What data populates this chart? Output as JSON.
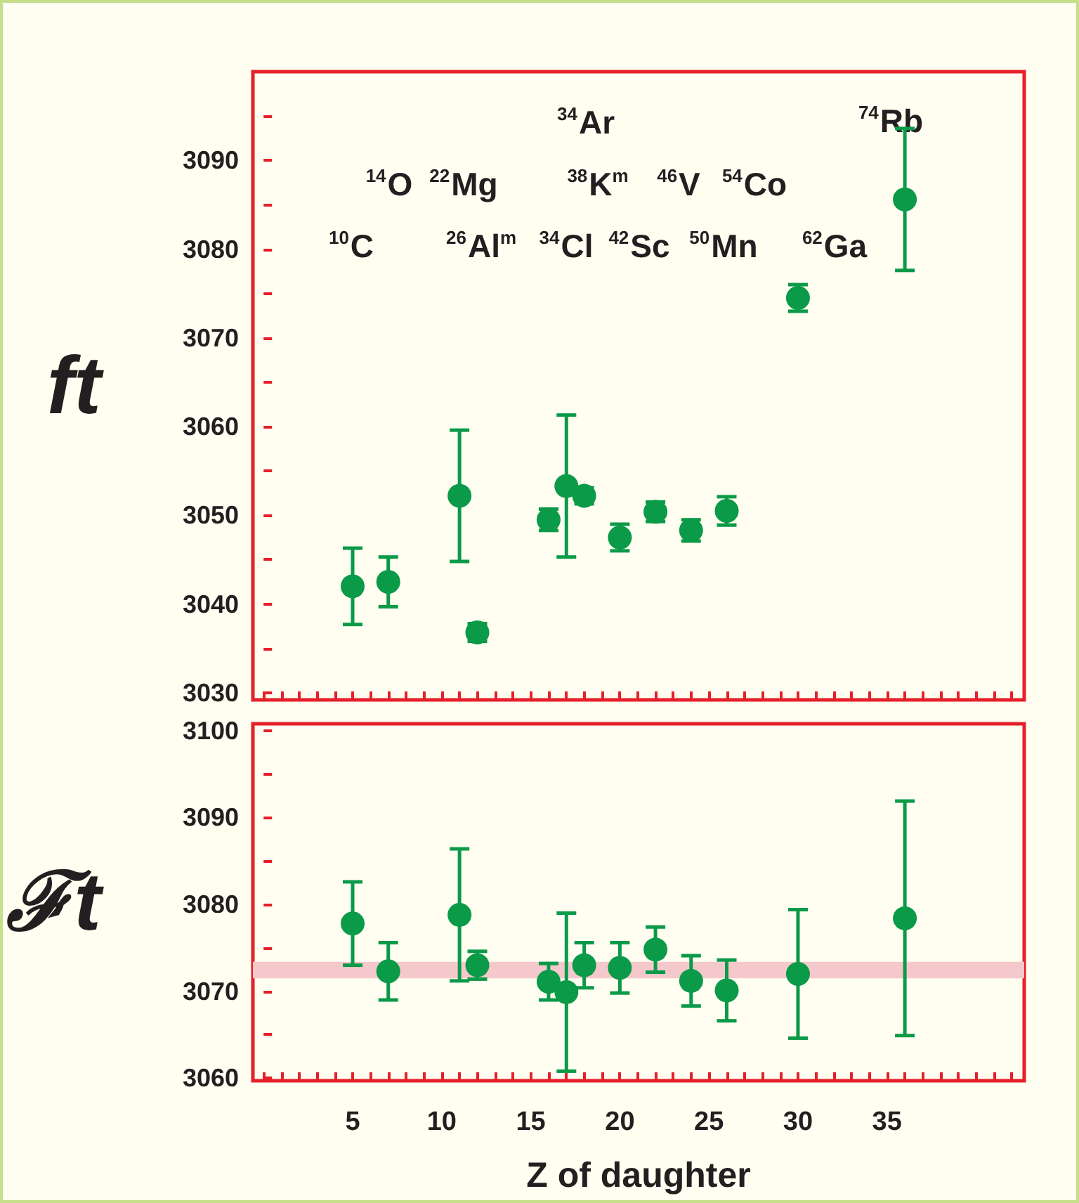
{
  "chart_data": [
    {
      "type": "scatter",
      "ylabel": "ft",
      "x": [
        5,
        7,
        11,
        12,
        16,
        17,
        18,
        20,
        22,
        24,
        26,
        30,
        36
      ],
      "series": [
        {
          "color": "#0a9a48",
          "values": [
            3042.0,
            3042.5,
            3052.2,
            3036.8,
            3049.5,
            3053.3,
            3052.2,
            3047.5,
            3050.4,
            3048.3,
            3050.5,
            3074.5,
            3085.6
          ],
          "errors": [
            4.3,
            2.8,
            7.4,
            1.0,
            1.2,
            8.0,
            0.9,
            1.5,
            1.1,
            1.2,
            1.6,
            1.5,
            8.0
          ]
        }
      ],
      "xlim": [
        -0.6,
        42.7
      ],
      "ylim": [
        3029.2,
        3100
      ],
      "xticks": [
        5,
        10,
        15,
        20,
        25,
        30,
        35
      ],
      "yticks": [
        3030,
        3040,
        3050,
        3060,
        3070,
        3080,
        3090
      ],
      "tick_labels": "y",
      "marker": "circle",
      "grid": false,
      "annotations": [
        "$^{10}$C",
        "$^{14}$O",
        "$^{22}$Mg",
        "$^{26}$Al$^{m}$",
        "$^{34}$Cl",
        "$^{34}$Ar",
        "$^{38}$K$^{m}$",
        "$^{42}$Sc",
        "$^{46}$V",
        "$^{50}$Mn",
        "$^{54}$Co",
        "$^{62}$Ga",
        "$^{74}$Rb"
      ]
    },
    {
      "type": "scatter",
      "ylabel": "ℱt",
      "xlabel": "Z of daughter",
      "x": [
        5,
        7,
        11,
        12,
        16,
        17,
        18,
        20,
        22,
        24,
        26,
        30,
        36
      ],
      "series": [
        {
          "color": "#0a9a48",
          "values": [
            3077.8,
            3072.3,
            3078.8,
            3073.0,
            3071.1,
            3069.9,
            3073.0,
            3072.7,
            3074.8,
            3071.2,
            3070.1,
            3072.0,
            3078.4
          ],
          "errors": [
            4.8,
            3.3,
            7.6,
            1.6,
            2.1,
            9.1,
            2.6,
            2.9,
            2.6,
            2.9,
            3.5,
            7.4,
            13.5
          ]
        }
      ],
      "xlim": [
        -0.6,
        42.7
      ],
      "ylim": [
        3059.7,
        3100.8
      ],
      "xticks": [
        5,
        10,
        15,
        20,
        25,
        30,
        35
      ],
      "yticks": [
        3060,
        3070,
        3080,
        3090,
        3100
      ],
      "marker": "circle",
      "grid": false,
      "bands": [
        {
          "axis": "y",
          "from": 3071.5,
          "to": 3073.4,
          "color": "#f5c9cb"
        }
      ]
    }
  ]
}
